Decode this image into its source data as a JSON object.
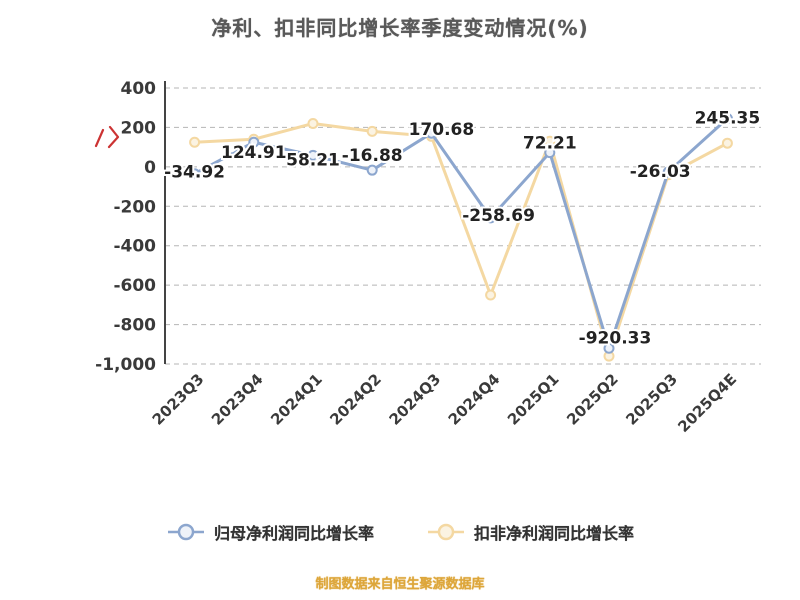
{
  "title": "净利、扣非同比增长率季度变动情况(%)",
  "footer": "制图数据来自恒生聚源数据库",
  "colors": {
    "blue": "#8ca6ce",
    "yellow": "#f4d8a2",
    "blue_marker_fill": "#eef2f9",
    "yellow_marker_fill": "#fbf3e2",
    "title": "#595959",
    "footer": "#dda63a",
    "data_label": "#222222",
    "axis": "#444444",
    "tick_text": "#3a3a3a",
    "grid": "#b5b5b5",
    "red_mark": "#cc3333"
  },
  "legend": [
    {
      "label": "归母净利润同比增长率",
      "color": "#8ca6ce",
      "marker_fill": "#eef2f9"
    },
    {
      "label": "扣非净利润同比增长率",
      "color": "#f4d8a2",
      "marker_fill": "#fbf3e2"
    }
  ],
  "chart_data": {
    "type": "line",
    "title": "净利、扣非同比增长率季度变动情况(%)",
    "categories": [
      "2023Q3",
      "2023Q4",
      "2024Q1",
      "2024Q2",
      "2024Q3",
      "2024Q4",
      "2025Q1",
      "2025Q2",
      "2025Q3",
      "2025Q4E"
    ],
    "series": [
      {
        "name": "归母净利润同比增长率",
        "color": "#8ca6ce",
        "marker_fill": "#eef2f9",
        "labeled": true,
        "values": [
          -34.92,
          124.91,
          58.21,
          -16.88,
          170.68,
          -258.69,
          72.21,
          -920.33,
          -26.03,
          245.35
        ]
      },
      {
        "name": "扣非净利润同比增长率",
        "color": "#f4d8a2",
        "marker_fill": "#fbf3e2",
        "labeled": false,
        "values": [
          125,
          140,
          220,
          180,
          155,
          -650,
          130,
          -960,
          -40,
          120
        ]
      }
    ],
    "data_labels": [
      "-34.92",
      "124.91",
      "58.21",
      "-16.88",
      "170.68",
      "-258.69",
      "72.21",
      "-920.33",
      "-26.03",
      "245.35"
    ],
    "y_ticks": [
      400,
      200,
      0,
      -200,
      -400,
      -600,
      -800,
      -1000
    ],
    "y_tick_labels": [
      "400",
      "200",
      "0",
      "-200",
      "-400",
      "-600",
      "-800",
      "-1,000"
    ],
    "ylim": [
      -1000,
      400
    ],
    "xlabel": "",
    "ylabel": "",
    "grid": "dashed-horizontal",
    "legend_position": "bottom"
  }
}
